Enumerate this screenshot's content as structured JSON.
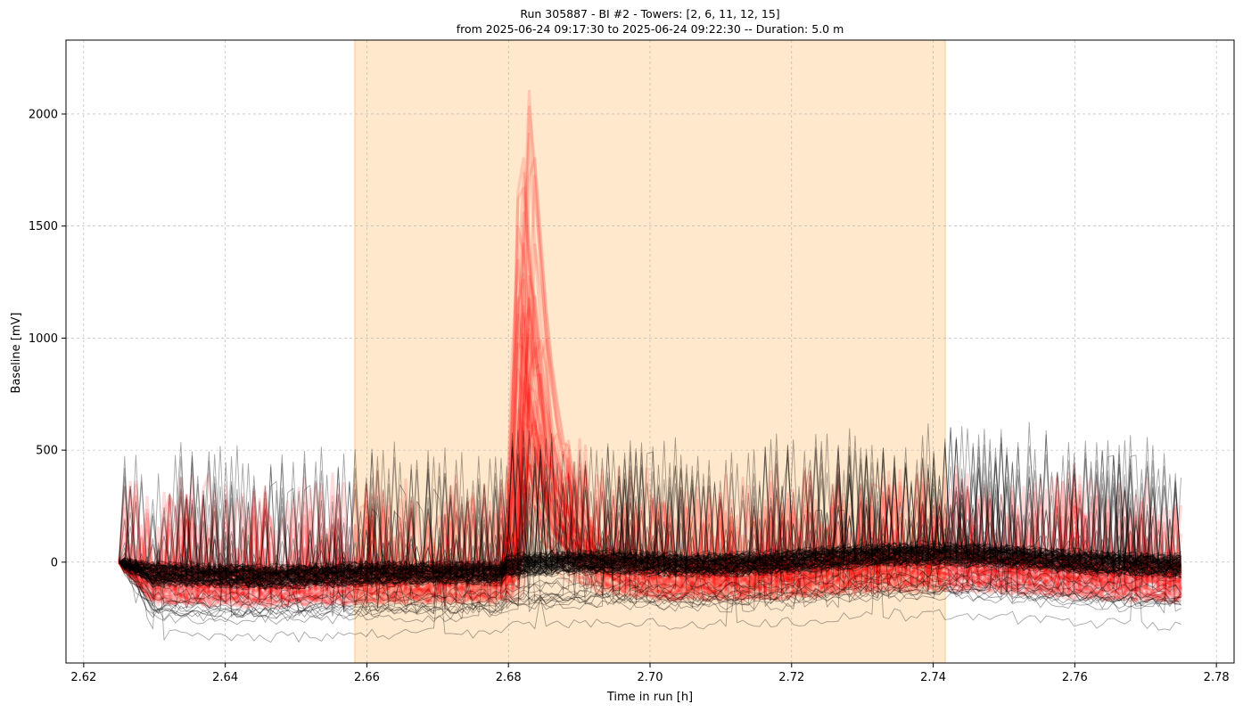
{
  "chart_data": {
    "type": "line",
    "title_lines": [
      "Run 305887  -  BI #2  -  Towers: [2, 6, 11, 12, 15]",
      "from  2025-06-24 09:17:30  to  2025-06-24 09:22:30 -- Duration: 5.0 m"
    ],
    "xlabel": "Time in run [h]",
    "ylabel": "Baseline [mV]",
    "xlim": [
      2.6175,
      2.7825
    ],
    "ylim": [
      -450,
      2330
    ],
    "x_ticks": [
      2.62,
      2.64,
      2.66,
      2.68,
      2.7,
      2.72,
      2.74,
      2.76,
      2.78
    ],
    "x_tick_labels": [
      "2.62",
      "2.64",
      "2.66",
      "2.68",
      "2.70",
      "2.72",
      "2.74",
      "2.76",
      "2.78"
    ],
    "y_ticks": [
      0,
      500,
      1000,
      1500,
      2000
    ],
    "y_tick_labels": [
      "0",
      "500",
      "1000",
      "1500",
      "2000"
    ],
    "grid": true,
    "highlight_band": {
      "x_start": 2.6583,
      "x_end": 2.7417,
      "color": "#ffe8cc"
    },
    "x_start": 2.625,
    "x_end": 2.775,
    "series_groups": [
      {
        "color": "#ff0000",
        "count": 60,
        "style": "thick-transparent",
        "peak_x": 2.6825,
        "peak_y": 2210
      },
      {
        "color": "#000000",
        "count": 110,
        "style": "thin-transparent",
        "floor_y": -330
      }
    ]
  }
}
